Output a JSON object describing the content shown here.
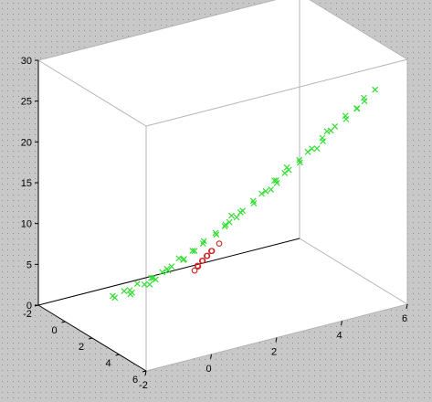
{
  "chart_data": {
    "type": "scatter3d",
    "title": "",
    "xlabel": "",
    "ylabel": "",
    "zlabel": "",
    "xlim": [
      -2,
      6
    ],
    "ylim": [
      -2,
      6
    ],
    "zlim": [
      0,
      30
    ],
    "x_ticks": [
      "-2",
      "0",
      "2",
      "4",
      "6"
    ],
    "y_ticks": [
      "-2",
      "0",
      "2",
      "4",
      "6"
    ],
    "z_ticks": [
      "0",
      "5",
      "10",
      "15",
      "20",
      "25",
      "30"
    ],
    "grid": false,
    "legend": "none",
    "series": [
      {
        "marker": "x",
        "color": "#33dd33",
        "points": [
          [
            -0.6,
            -0.3,
            0.8
          ],
          [
            -0.3,
            0.1,
            1.4
          ],
          [
            0.0,
            -0.2,
            1.9
          ],
          [
            0.3,
            0.3,
            2.5
          ],
          [
            0.5,
            0.0,
            3.1
          ],
          [
            0.2,
            0.5,
            2.2
          ],
          [
            -0.5,
            0.2,
            0.6
          ],
          [
            0.7,
            0.4,
            3.6
          ],
          [
            0.9,
            0.6,
            4.3
          ],
          [
            0.6,
            0.9,
            3.9
          ],
          [
            1.1,
            0.8,
            5.0
          ],
          [
            1.3,
            1.1,
            5.8
          ],
          [
            1.0,
            1.2,
            5.3
          ],
          [
            1.4,
            0.9,
            6.2
          ],
          [
            1.6,
            1.3,
            6.9
          ],
          [
            1.5,
            1.6,
            7.4
          ],
          [
            1.8,
            1.5,
            8.1
          ],
          [
            2.0,
            1.8,
            8.8
          ],
          [
            1.9,
            2.1,
            9.4
          ],
          [
            2.2,
            2.0,
            10.0
          ],
          [
            2.3,
            2.3,
            10.7
          ],
          [
            2.1,
            2.5,
            10.9
          ],
          [
            2.5,
            2.4,
            11.6
          ],
          [
            2.6,
            2.7,
            12.3
          ],
          [
            2.8,
            2.6,
            12.9
          ],
          [
            2.7,
            2.9,
            13.4
          ],
          [
            3.0,
            2.9,
            14.0
          ],
          [
            3.1,
            3.2,
            14.8
          ],
          [
            3.3,
            3.1,
            15.4
          ],
          [
            3.2,
            3.4,
            15.9
          ],
          [
            3.5,
            3.4,
            16.6
          ],
          [
            3.6,
            3.7,
            17.3
          ],
          [
            3.8,
            3.6,
            17.9
          ],
          [
            3.7,
            3.9,
            18.5
          ],
          [
            4.0,
            3.9,
            19.2
          ],
          [
            4.1,
            4.2,
            19.9
          ],
          [
            4.3,
            4.1,
            20.6
          ],
          [
            4.2,
            4.4,
            21.1
          ],
          [
            4.5,
            4.4,
            21.9
          ],
          [
            4.6,
            4.7,
            22.6
          ],
          [
            4.8,
            4.6,
            23.3
          ],
          [
            4.9,
            4.9,
            24.0
          ],
          [
            5.0,
            5.1,
            24.8
          ],
          [
            5.2,
            5.0,
            25.5
          ],
          [
            5.3,
            5.3,
            26.3
          ],
          [
            0.1,
            0.0,
            1.6
          ],
          [
            0.4,
            0.6,
            2.9
          ],
          [
            0.8,
            0.3,
            3.8
          ],
          [
            1.2,
            1.4,
            6.4
          ],
          [
            1.7,
            1.9,
            8.6
          ],
          [
            2.4,
            2.1,
            11.2
          ],
          [
            2.9,
            3.1,
            13.9
          ],
          [
            3.4,
            3.0,
            15.6
          ],
          [
            3.9,
            4.1,
            18.9
          ],
          [
            4.4,
            4.2,
            21.4
          ],
          [
            4.7,
            5.0,
            23.7
          ],
          [
            -0.2,
            -0.4,
            1.1
          ],
          [
            1.0,
            0.7,
            4.7
          ],
          [
            2.0,
            2.2,
            9.9
          ],
          [
            3.6,
            3.3,
            17.1
          ]
        ]
      },
      {
        "marker": "o",
        "color": "#cc2222",
        "points": [
          [
            2.1,
            1.2,
            5.6
          ],
          [
            2.3,
            1.1,
            6.0
          ],
          [
            2.2,
            1.3,
            6.3
          ],
          [
            2.4,
            1.2,
            6.6
          ],
          [
            2.3,
            1.4,
            6.9
          ],
          [
            2.5,
            1.3,
            7.2
          ],
          [
            2.4,
            1.5,
            7.5
          ],
          [
            2.6,
            1.4,
            7.8
          ],
          [
            2.7,
            1.6,
            8.6
          ],
          [
            1.6,
            1.3,
            4.5
          ]
        ]
      }
    ]
  }
}
